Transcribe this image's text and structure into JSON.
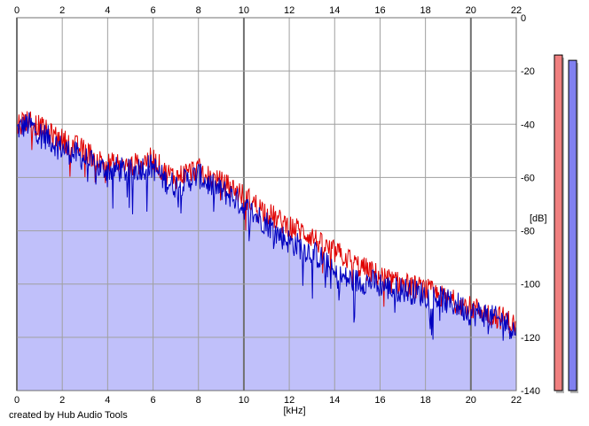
{
  "footer": {
    "credit": "created by Hub Audio Tools"
  },
  "chart_data": {
    "type": "area",
    "xlabel": "[kHz]",
    "ylabel": "[dB]",
    "xlim": [
      0,
      22
    ],
    "ylim": [
      -140,
      0
    ],
    "x_ticks": [
      0,
      2,
      4,
      6,
      8,
      10,
      12,
      14,
      16,
      18,
      20,
      22
    ],
    "y_ticks": [
      0,
      -20,
      -40,
      -60,
      -80,
      -100,
      -120,
      -140
    ],
    "grid": true,
    "series": [
      {
        "color": "#e00000",
        "x": [
          0,
          0.5,
          1,
          1.5,
          2,
          2.5,
          3,
          3.5,
          4,
          4.5,
          5,
          5.5,
          6,
          6.5,
          7,
          7.5,
          8,
          8.5,
          9,
          9.5,
          10,
          10.5,
          11,
          11.5,
          12,
          12.5,
          13,
          13.5,
          14,
          14.5,
          15,
          15.5,
          16,
          16.5,
          17,
          17.5,
          18,
          18.5,
          19,
          19.5,
          20,
          20.5,
          21,
          21.5,
          22
        ],
        "values": [
          -40,
          -38,
          -41,
          -44,
          -46,
          -48,
          -50,
          -53,
          -55,
          -55,
          -56,
          -54,
          -53,
          -58,
          -60,
          -58,
          -57,
          -60,
          -62,
          -64,
          -67,
          -70,
          -73,
          -76,
          -78,
          -80,
          -82,
          -86,
          -88,
          -90,
          -93,
          -95,
          -97,
          -99,
          -100,
          -101,
          -102,
          -104,
          -106,
          -107,
          -109,
          -110,
          -112,
          -113,
          -116
        ]
      },
      {
        "color": "#0000c0",
        "x": [
          0,
          0.5,
          1,
          1.5,
          2,
          2.5,
          3,
          3.5,
          4,
          4.5,
          5,
          5.5,
          6,
          6.5,
          7,
          7.5,
          8,
          8.5,
          9,
          9.5,
          10,
          10.5,
          11,
          11.5,
          12,
          12.5,
          13,
          13.5,
          14,
          14.5,
          15,
          15.5,
          16,
          16.5,
          17,
          17.5,
          18,
          18.5,
          19,
          19.5,
          20,
          20.5,
          21,
          21.5,
          22
        ],
        "values": [
          -42,
          -40,
          -43,
          -46,
          -49,
          -51,
          -53,
          -56,
          -57,
          -57,
          -58,
          -56,
          -56,
          -61,
          -63,
          -61,
          -59,
          -63,
          -65,
          -67,
          -71,
          -74,
          -77,
          -81,
          -84,
          -86,
          -88,
          -91,
          -97,
          -98,
          -99,
          -99,
          -100,
          -102,
          -102,
          -103,
          -104,
          -105,
          -107,
          -108,
          -111,
          -111,
          -113,
          -114,
          -118
        ]
      }
    ],
    "meters": [
      {
        "color": "#f08080",
        "level_db": -14
      },
      {
        "color": "#8080f0",
        "level_db": -16
      }
    ]
  }
}
